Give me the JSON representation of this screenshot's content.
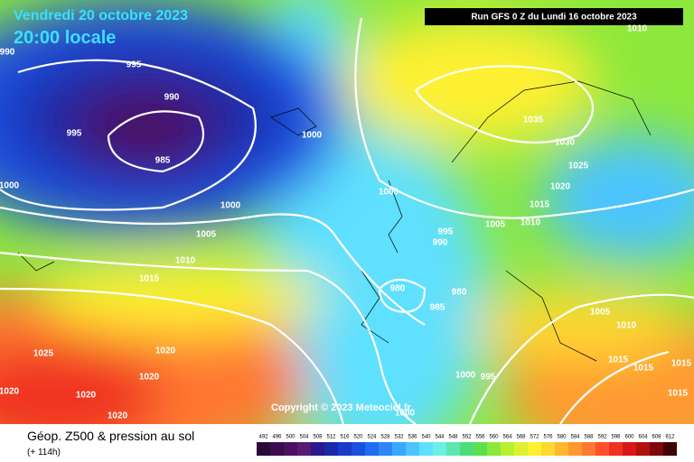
{
  "header": {
    "date": "Vendredi 20 octobre 2023",
    "time": "20:00 locale",
    "run": "Run GFS 0 Z du Lundi 16 octobre 2023"
  },
  "copyright": "Copyright © 2023 Meteociel.fr",
  "footer": {
    "title": "Géop. Z500 & pression au sol",
    "step": "(+ 114h)"
  },
  "isobar_labels": [
    "995",
    "990",
    "995",
    "985",
    "1000",
    "1000",
    "1005",
    "1010",
    "1015",
    "1020",
    "1025",
    "1020",
    "1020",
    "1020",
    "1020",
    "1035",
    "1030",
    "1025",
    "1020",
    "1015",
    "1010",
    "1005",
    "1000",
    "995",
    "990",
    "980",
    "985",
    "980",
    "1000",
    "995",
    "1000",
    "1005",
    "1010",
    "1015",
    "1015",
    "1015",
    "1015",
    "1010",
    "1000",
    "990"
  ],
  "colorbar": {
    "labels": [
      "492",
      "496",
      "500",
      "504",
      "508",
      "512",
      "516",
      "520",
      "524",
      "528",
      "532",
      "536",
      "540",
      "544",
      "548",
      "552",
      "556",
      "560",
      "564",
      "568",
      "572",
      "576",
      "580",
      "584",
      "588",
      "592",
      "596",
      "600",
      "604",
      "608",
      "612"
    ],
    "colors": [
      "#2a0a3a",
      "#3a0c4e",
      "#4b1060",
      "#5a1a72",
      "#2a1a8c",
      "#1a2aa8",
      "#1a3ac8",
      "#1a50e0",
      "#1e6cf0",
      "#2a88f8",
      "#3aa8ff",
      "#4cc4ff",
      "#5ee0ff",
      "#6cf0e6",
      "#5ee6b0",
      "#4cdc78",
      "#5ce04c",
      "#8ce83c",
      "#b8f030",
      "#e0f030",
      "#fff030",
      "#ffd830",
      "#ffb830",
      "#ff9830",
      "#ff7830",
      "#ff5028",
      "#f03020",
      "#d81818",
      "#b01010",
      "#800808",
      "#400404"
    ]
  }
}
